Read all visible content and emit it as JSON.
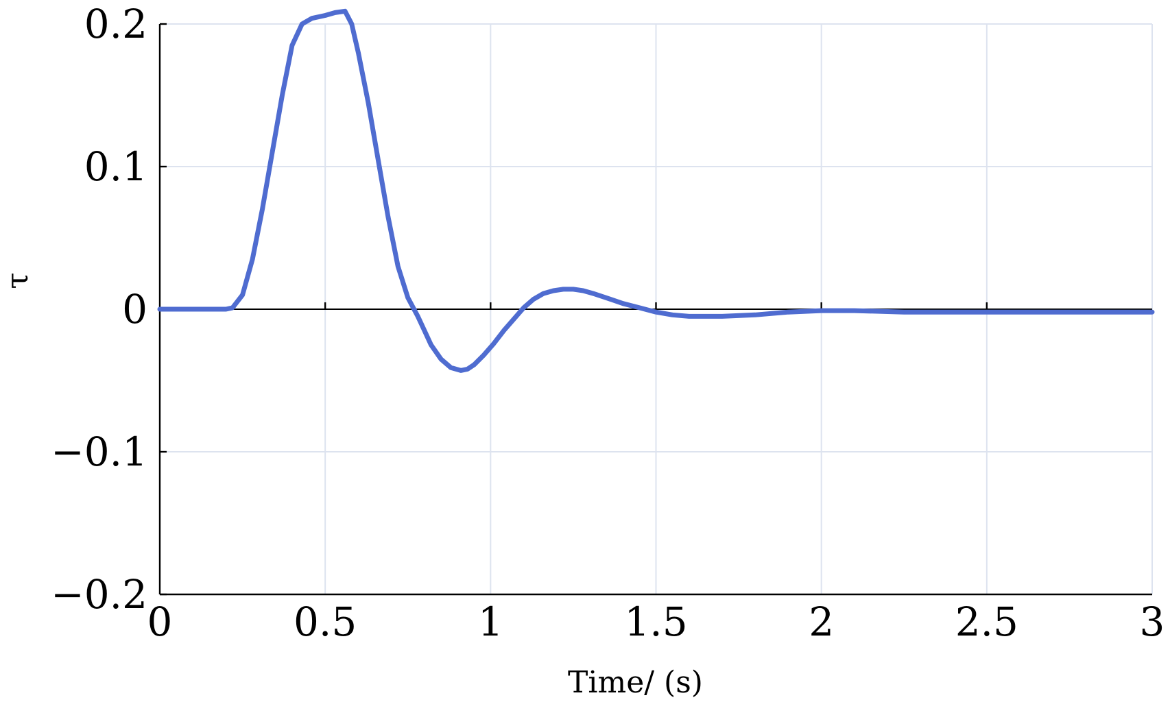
{
  "chart_data": {
    "type": "line",
    "title": "",
    "xlabel": "Time/ (s)",
    "ylabel": "τ",
    "xlim": [
      0,
      3
    ],
    "ylim": [
      -0.2,
      0.2
    ],
    "xticks": [
      0,
      0.5,
      1,
      1.5,
      2,
      2.5,
      3
    ],
    "yticks": [
      -0.2,
      -0.1,
      0,
      0.1,
      0.2
    ],
    "xtick_labels": [
      "0",
      "0.5",
      "1",
      "1.5",
      "2",
      "2.5",
      "3"
    ],
    "ytick_labels": [
      "−0.2",
      "−0.1",
      "0",
      "0.1",
      "0.2"
    ],
    "grid": true,
    "legend": "none",
    "colors": {
      "series": "#4f6cd0",
      "grid": "#dde3ef",
      "axis": "#000000"
    },
    "series": [
      {
        "x": [
          0,
          0.05,
          0.1,
          0.15,
          0.2,
          0.22,
          0.25,
          0.28,
          0.31,
          0.34,
          0.37,
          0.4,
          0.43,
          0.46,
          0.5,
          0.53,
          0.56,
          0.58,
          0.6,
          0.63,
          0.66,
          0.69,
          0.72,
          0.75,
          0.78,
          0.8,
          0.82,
          0.85,
          0.88,
          0.91,
          0.93,
          0.95,
          0.98,
          1.01,
          1.04,
          1.07,
          1.1,
          1.13,
          1.16,
          1.19,
          1.22,
          1.25,
          1.28,
          1.31,
          1.35,
          1.4,
          1.45,
          1.5,
          1.55,
          1.6,
          1.65,
          1.7,
          1.8,
          1.9,
          2.0,
          2.1,
          2.25,
          2.4,
          2.6,
          2.8,
          3.0
        ],
        "y": [
          0,
          0,
          0,
          0,
          0,
          0.001,
          0.01,
          0.035,
          0.07,
          0.11,
          0.15,
          0.185,
          0.2,
          0.204,
          0.206,
          0.208,
          0.209,
          0.2,
          0.18,
          0.145,
          0.105,
          0.065,
          0.03,
          0.008,
          -0.005,
          -0.015,
          -0.025,
          -0.035,
          -0.041,
          -0.043,
          -0.042,
          -0.039,
          -0.032,
          -0.024,
          -0.015,
          -0.007,
          0.001,
          0.007,
          0.011,
          0.013,
          0.014,
          0.014,
          0.013,
          0.011,
          0.008,
          0.004,
          0.001,
          -0.002,
          -0.004,
          -0.005,
          -0.005,
          -0.005,
          -0.004,
          -0.002,
          -0.001,
          -0.001,
          -0.002,
          -0.002,
          -0.002,
          -0.002,
          -0.002
        ]
      }
    ]
  }
}
